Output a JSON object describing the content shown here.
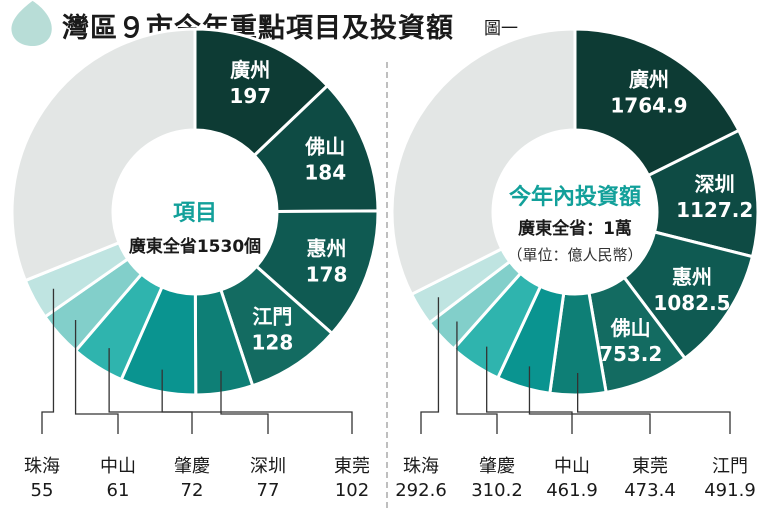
{
  "header": {
    "title": "灣區９市今年重點項目及投資額",
    "figure_label": "圖一"
  },
  "colors": {
    "rest": "#e3e6e5",
    "palette": [
      "#0d3b34",
      "#0e4b44",
      "#0f5a52",
      "#136b61",
      "#0e7f76",
      "#0a9490",
      "#2fb4ae",
      "#82cfca",
      "#bfe4e1"
    ],
    "drop_icon": "#b8ddd7"
  },
  "chart_data": [
    {
      "type": "pie",
      "center_title": "項目",
      "center_subtitle": "廣東全省1530個",
      "center_note": "",
      "total": 1530,
      "categories": [
        "廣州",
        "佛山",
        "惠州",
        "江門",
        "深圳",
        "東莞",
        "肇慶",
        "中山",
        "珠海"
      ],
      "values": [
        197,
        184,
        178,
        128,
        77,
        102,
        72,
        61,
        55
      ],
      "value_labels": [
        "197",
        "184",
        "178",
        "128",
        "77",
        "102",
        "72",
        "61",
        "55"
      ],
      "bottom_order": [
        "珠海",
        "中山",
        "肇慶",
        "深圳",
        "東莞"
      ]
    },
    {
      "type": "pie",
      "center_title": "今年內投資額",
      "center_subtitle": "廣東全省：1萬",
      "center_note": "（單位：億人民幣）",
      "total": 10000,
      "categories": [
        "廣州",
        "深圳",
        "惠州",
        "佛山",
        "江門",
        "東莞",
        "中山",
        "肇慶",
        "珠海"
      ],
      "values": [
        1764.9,
        1127.2,
        1082.5,
        753.2,
        491.9,
        473.4,
        461.9,
        310.2,
        292.6
      ],
      "value_labels": [
        "1764.9",
        "1127.2",
        "1082.5",
        "753.2",
        "491.9",
        "473.4",
        "461.9",
        "310.2",
        "292.6"
      ],
      "bottom_order": [
        "珠海",
        "肇慶",
        "中山",
        "東莞",
        "江門"
      ]
    }
  ]
}
